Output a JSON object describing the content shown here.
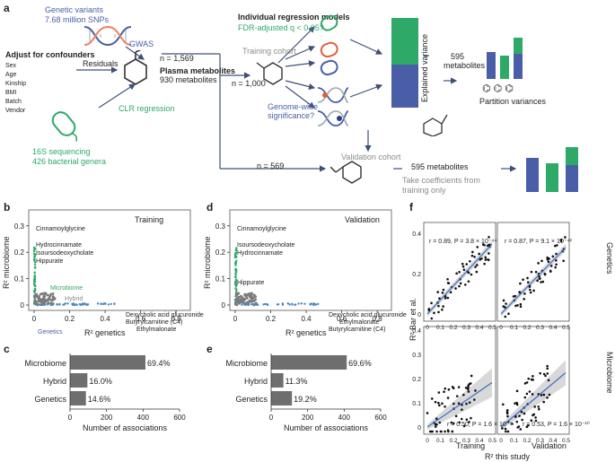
{
  "panel_a": {
    "letter": "a",
    "genetic_variants": "Genetic variants",
    "snps": "7.68 million SNPs",
    "gwas": "GWAS",
    "adjust_title": "Adjust for confounders",
    "confounders": [
      "Sex",
      "Age",
      "Kinship",
      "BMI",
      "Batch",
      "Vendor"
    ],
    "residuals": "Residuals",
    "n_total": "n = 1,569",
    "plasma_metabolites": "Plasma metabolites",
    "metabolite_count": "930 metabolites",
    "clr": "CLR regression",
    "seq": "16S sequencing",
    "genera": "426 bacterial genera",
    "individual_models": "Individual regression models",
    "fdr": "FDR-adjusted q < 0.05?",
    "training_cohort": "Training cohort",
    "n_train": "n = 1,000",
    "genome_wide_1": "Genome-wide",
    "genome_wide_2": "significance?",
    "explained_variance": "Explained variance",
    "m595_a": "595",
    "m595_b": "metabolites",
    "partition": "Partition variances",
    "validation_cohort": "Validation cohort",
    "n_val": "n = 569",
    "m595_val": "595 metabolites",
    "coef_1": "Take coefficients from",
    "coef_2": "training only"
  },
  "colors": {
    "blue": "#4a5ea8",
    "green": "#2fa968",
    "gray": "#6e6e6e",
    "red": "#e0603c"
  },
  "panel_b": {
    "letter": "b",
    "title": "Training",
    "xlabel": "R² genetics",
    "ylabel": "R² microbiome",
    "labels": [
      "Cinnamoylglycine",
      "Hydrocinnamate",
      "Isoursodeoxycholate",
      "Hippurate",
      "Microbiome",
      "Hybrid",
      "Genetics",
      "Dexycholic acid glucuronide",
      "Butyrylcarnitine (C4)",
      "Ethylmalonate"
    ],
    "xticks": [
      "0",
      "0.2",
      "0.4",
      "0.6",
      "0.8"
    ],
    "yticks": [
      "0",
      "0.1",
      "0.2",
      "0.3"
    ]
  },
  "panel_d": {
    "letter": "d",
    "title": "Validation",
    "xlabel": "R² genetics",
    "ylabel": "R² microbiome",
    "labels": [
      "Cinnamoylglycine",
      "Isoursodeoxycholate",
      "Hydrocinnamate",
      "Hippurate",
      "Dexycholic acid glucuronide",
      "Ethylmalonate",
      "Butyrylcarnitine (C4)"
    ],
    "xticks": [
      "0",
      "0.2",
      "0.4",
      "0.6",
      "0.8"
    ],
    "yticks": [
      "0",
      "0.1",
      "0.2",
      "0.3"
    ]
  },
  "chart_data": [
    {
      "type": "bar",
      "panel": "c",
      "categories": [
        "Microbiome",
        "Hybrid",
        "Genetics"
      ],
      "values": [
        413,
        95,
        87
      ],
      "labels": [
        "69.4%",
        "16.0%",
        "14.6%"
      ],
      "xlabel": "Number of associations",
      "xticks": [
        "0",
        "200",
        "400",
        "600"
      ],
      "xlim": [
        0,
        600
      ]
    },
    {
      "type": "bar",
      "panel": "e",
      "categories": [
        "Microbiome",
        "Hybrid",
        "Genetics"
      ],
      "values": [
        414,
        67,
        114
      ],
      "labels": [
        "69.6%",
        "11.3%",
        "19.2%"
      ],
      "xlabel": "Number of associations",
      "xticks": [
        "0",
        "200",
        "400",
        "600"
      ],
      "xlim": [
        0,
        600
      ]
    }
  ],
  "panel_f": {
    "letter": "f",
    "ylabel": "R² Bar et al.",
    "xlabel": "R² this study",
    "row_labels": [
      "Genetics",
      "Microbiome"
    ],
    "col_labels": [
      "Training",
      "Validation"
    ],
    "stats": [
      "r = 0.89, P = 3.8 × 10⁻⁴⁴",
      "r = 0.87, P = 9.1 × 10⁻⁴²",
      "r = 0.50, P = 1.6 × 10⁻⁹",
      "r = 0.53, P = 1.6 × 10⁻¹⁰"
    ],
    "yticks_top": [
      "0",
      "0.2",
      "0.4"
    ],
    "yticks_bottom": [
      "0",
      "0.1",
      "0.2",
      "0.3",
      "0.4"
    ],
    "xticks": [
      "0",
      "0.1",
      "0.2",
      "0.3",
      "0.4",
      "0.5"
    ],
    "xticks_val": [
      "0",
      "0.1",
      "0.2",
      "0.3",
      "0.4",
      "0.5"
    ]
  }
}
